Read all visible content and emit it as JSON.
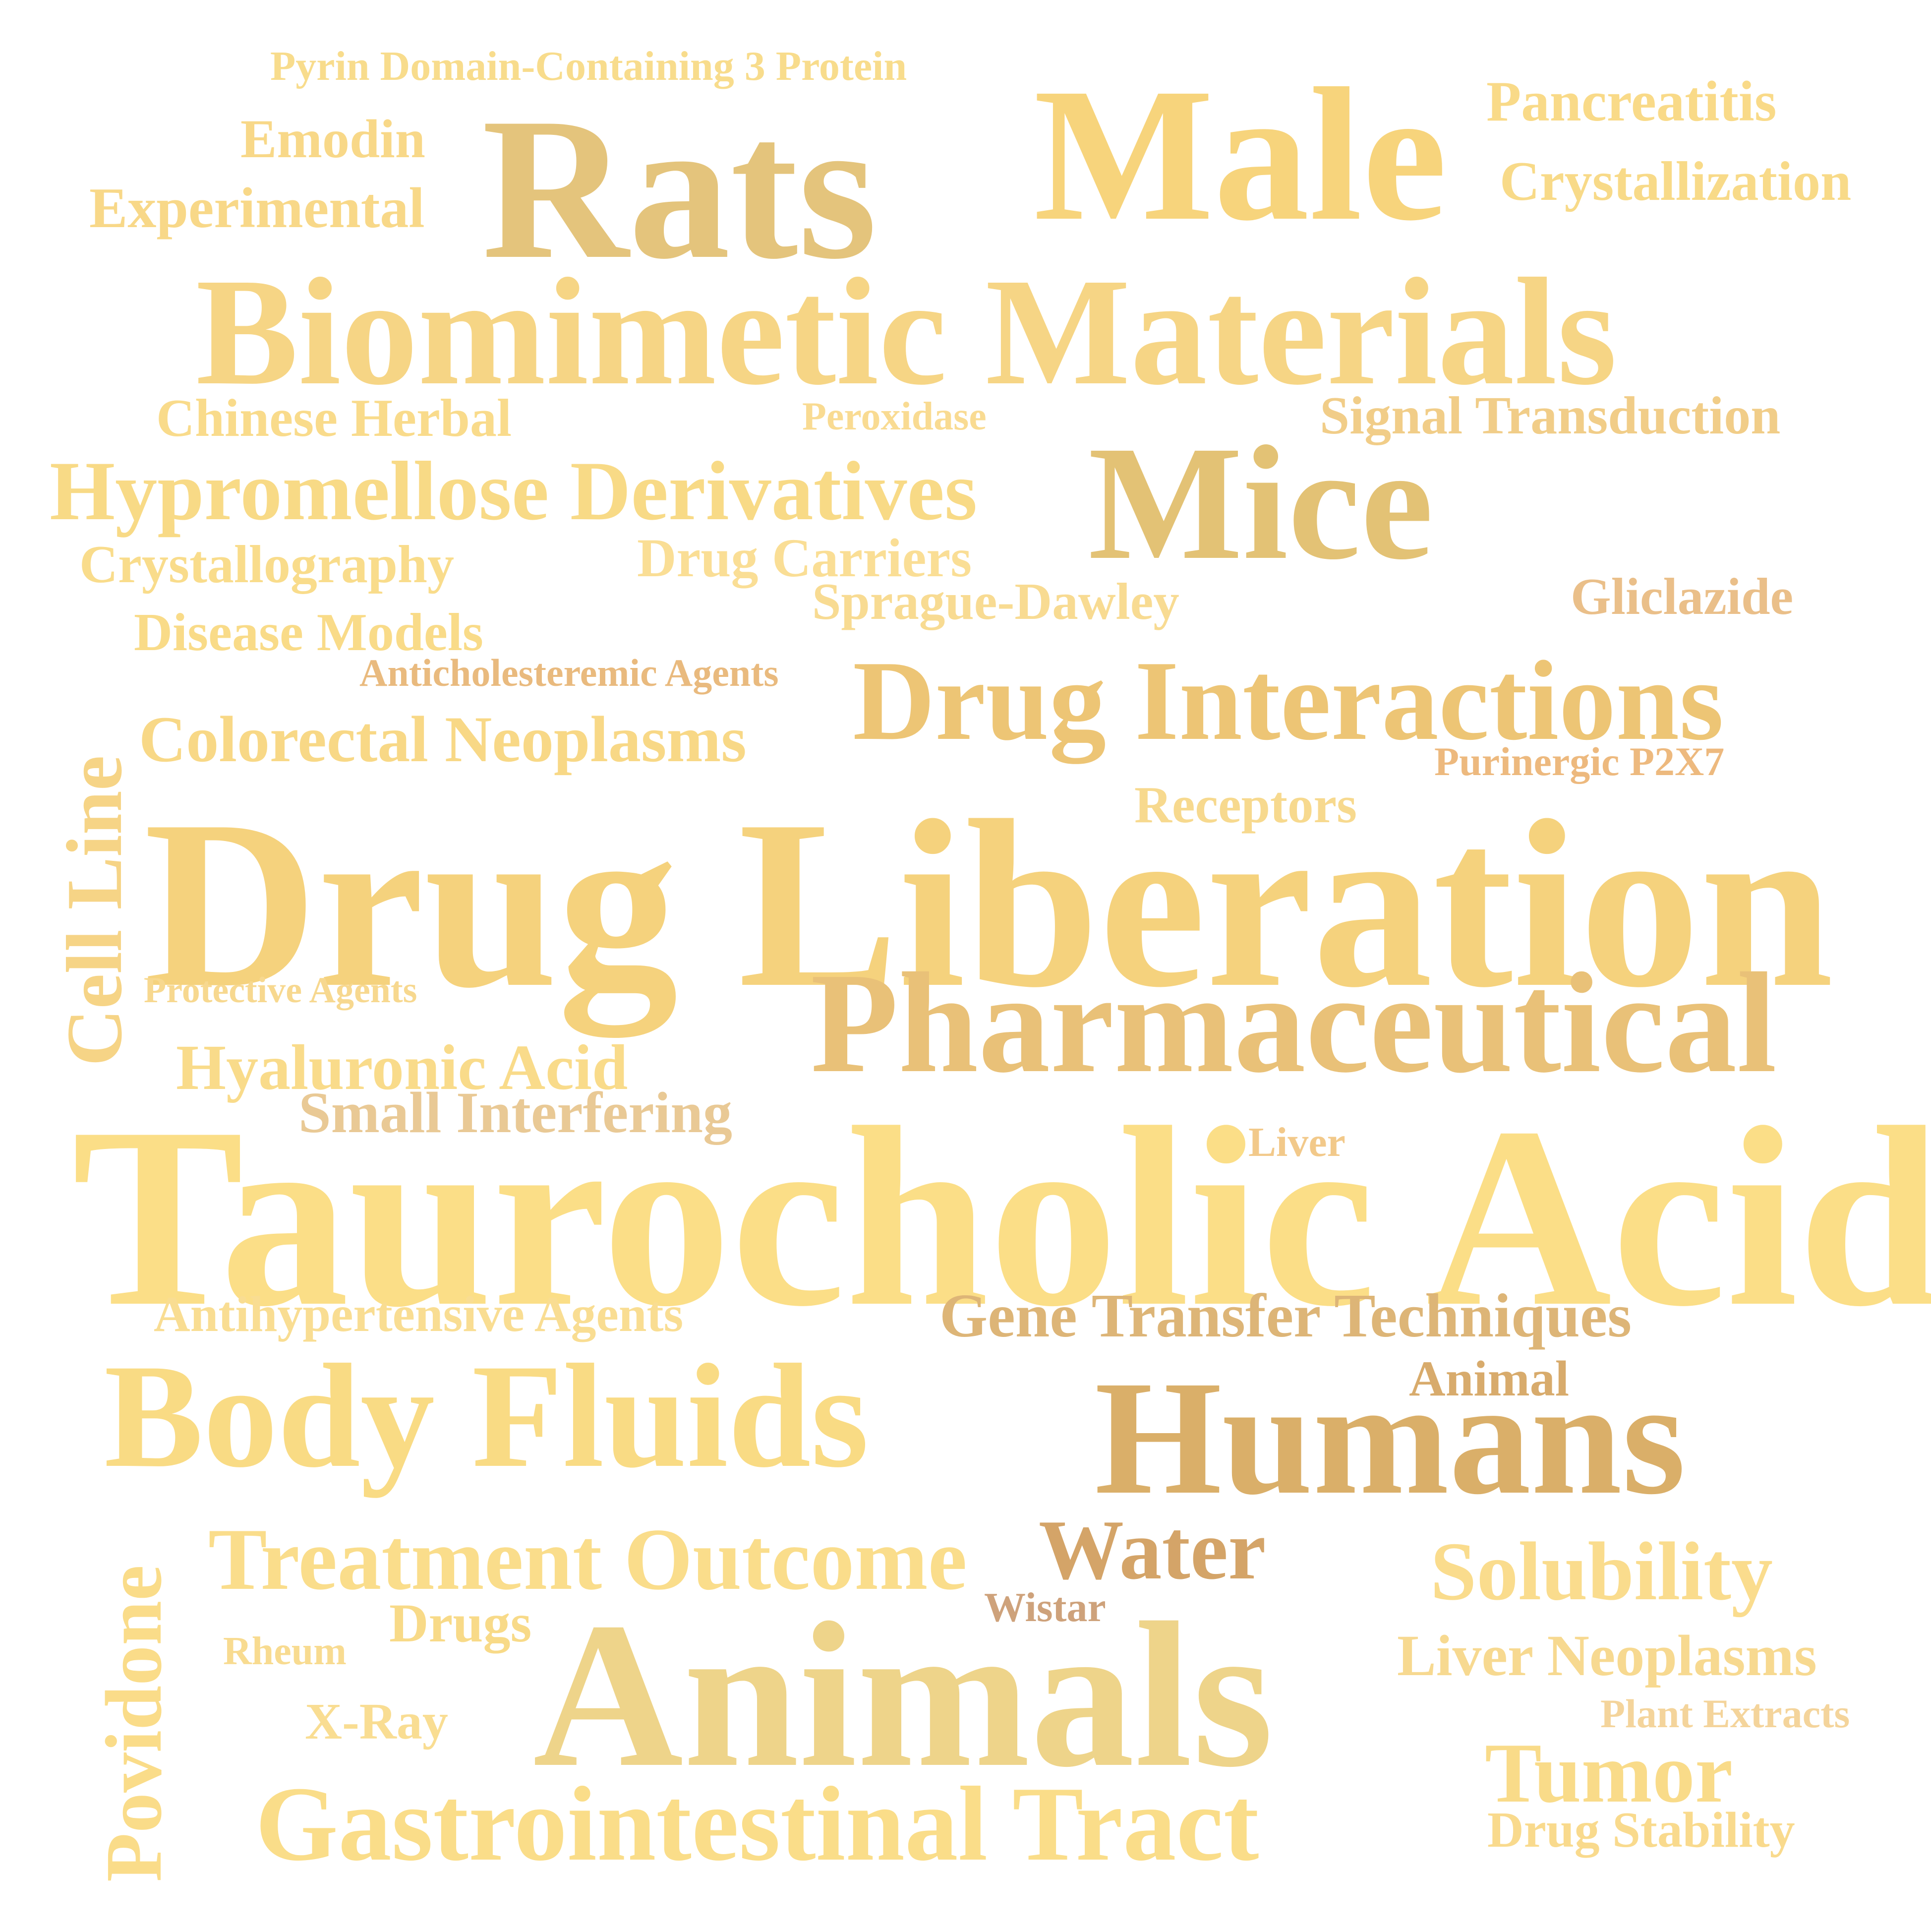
{
  "words": [
    {
      "text": "Pyrin Domain-Containing 3 Protein",
      "color": "#F8DC8C"
    },
    {
      "text": "Emodin",
      "color": "#F8D888"
    },
    {
      "text": "Experimental",
      "color": "#F8D888"
    },
    {
      "text": "Rats",
      "color": "#E4C47C"
    },
    {
      "text": "Male",
      "color": "#F7D47C"
    },
    {
      "text": "Pancreatitis",
      "color": "#F9DA88"
    },
    {
      "text": "Crystallization",
      "color": "#F8DA88"
    },
    {
      "text": "Biomimetic Materials",
      "color": "#F6D585"
    },
    {
      "text": "Chinese Herbal",
      "color": "#F9DB8B"
    },
    {
      "text": "Peroxidase",
      "color": "#F9DB92"
    },
    {
      "text": "Signal Transduction",
      "color": "#F1CD88"
    },
    {
      "text": "Hypromellose Derivatives",
      "color": "#F8DA86"
    },
    {
      "text": "Mice",
      "color": "#E3C275"
    },
    {
      "text": "Crystallography",
      "color": "#F9DC8B"
    },
    {
      "text": "Drug Carriers",
      "color": "#FADE95"
    },
    {
      "text": "Sprague-Dawley",
      "color": "#F8DB92"
    },
    {
      "text": "Gliclazide",
      "color": "#EABF89"
    },
    {
      "text": "Disease Models",
      "color": "#F9DB88"
    },
    {
      "text": "Anticholesteremic Agents",
      "color": "#E9BA7E"
    },
    {
      "text": "Drug Interactions",
      "color": "#EDC575"
    },
    {
      "text": "Cell Line",
      "color": "#F6D486"
    },
    {
      "text": "Colorectal Neoplasms",
      "color": "#F8D886"
    },
    {
      "text": "Purinergic P2X7",
      "color": "#EDB97E"
    },
    {
      "text": "Receptors",
      "color": "#F7D98E"
    },
    {
      "text": "Drug Liberation",
      "color": "#F5D27D"
    },
    {
      "text": "Protective Agents",
      "color": "#F7D88F"
    },
    {
      "text": "Pharmaceutical",
      "color": "#E9C178"
    },
    {
      "text": "Hyaluronic Acid",
      "color": "#F9DB8A"
    },
    {
      "text": "Small Interfering",
      "color": "#E9C995"
    },
    {
      "text": "Liver",
      "color": "#F2C98A"
    },
    {
      "text": "Taurocholic Acid",
      "color": "#FBDE87"
    },
    {
      "text": "Antihypertensive Agents",
      "color": "#F9DD92"
    },
    {
      "text": "Gene Transfer Techniques",
      "color": "#DDB577"
    },
    {
      "text": "Animal",
      "color": "#D8AB6C"
    },
    {
      "text": "Body Fluids",
      "color": "#F9DB84"
    },
    {
      "text": "Humans",
      "color": "#DAAF69"
    },
    {
      "text": "Povidone",
      "color": "#FADC89"
    },
    {
      "text": "Treatment Outcome",
      "color": "#FADD8B"
    },
    {
      "text": "Water",
      "color": "#D4A468"
    },
    {
      "text": "Solubility",
      "color": "#FADC8D"
    },
    {
      "text": "Wistar",
      "color": "#CEA27B"
    },
    {
      "text": "Drugs",
      "color": "#F8DA88"
    },
    {
      "text": "Rheum",
      "color": "#F8DB90"
    },
    {
      "text": "Liver Neoplasms",
      "color": "#F7D990"
    },
    {
      "text": "Animals",
      "color": "#EED48A"
    },
    {
      "text": "Plant Extracts",
      "color": "#F4D49B"
    },
    {
      "text": "X-Ray",
      "color": "#F9DD92"
    },
    {
      "text": "Tumor",
      "color": "#F9DB89"
    },
    {
      "text": "Gastrointestinal Tract",
      "color": "#FADD89"
    },
    {
      "text": "Drug Stability",
      "color": "#F9DA8D"
    }
  ]
}
